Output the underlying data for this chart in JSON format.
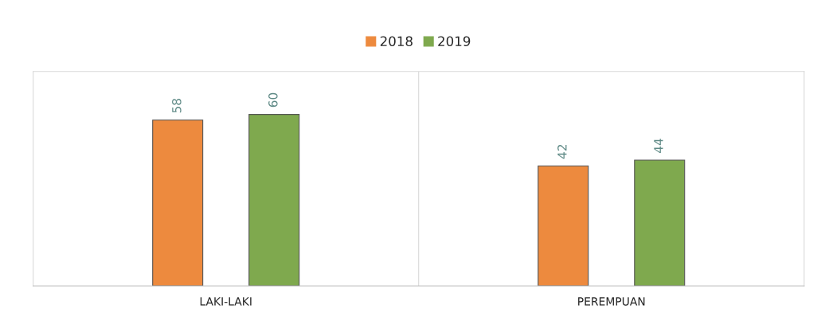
{
  "chart_data": {
    "type": "bar",
    "categories": [
      "LAKI-LAKI",
      "PEREMPUAN"
    ],
    "series": [
      {
        "name": "2018",
        "color": "#ed8a3e",
        "values": [
          58,
          42
        ]
      },
      {
        "name": "2019",
        "color": "#7fa94e",
        "values": [
          60,
          44
        ]
      }
    ],
    "data_labels": true,
    "legend": "top",
    "grid": false
  }
}
